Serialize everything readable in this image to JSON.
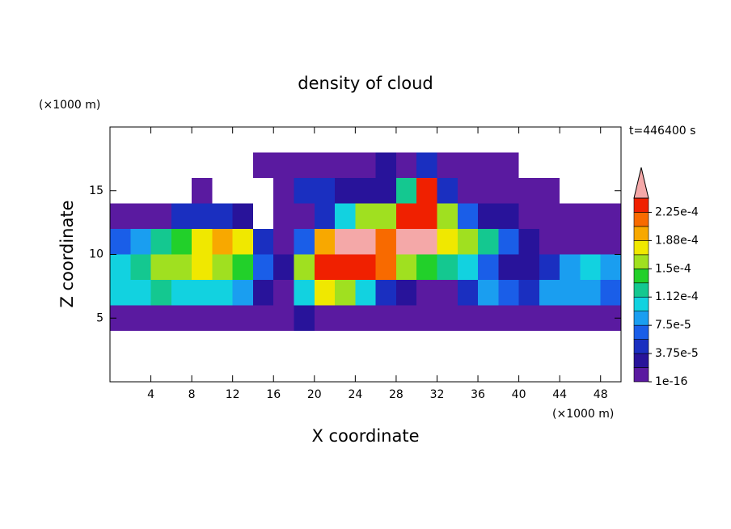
{
  "chart_data": {
    "type": "contour",
    "title": "density of cloud",
    "x_unit": "(×1000 m)",
    "y_unit": "(×1000 m)",
    "time_label": "t=446400 s",
    "xlabel": "X coordinate",
    "ylabel": "Z coordinate",
    "xlim": [
      0,
      50
    ],
    "ylim": [
      0,
      20
    ],
    "xticks": [
      4,
      8,
      12,
      16,
      20,
      24,
      28,
      32,
      36,
      40,
      44,
      48
    ],
    "yticks": [
      5,
      10,
      15
    ],
    "x": [
      1,
      3,
      5,
      7,
      9,
      11,
      13,
      15,
      17,
      19,
      21,
      23,
      25,
      27,
      29,
      31,
      33,
      35,
      37,
      39,
      41,
      43,
      45,
      47,
      49
    ],
    "y": [
      1,
      3,
      5,
      7,
      9,
      11,
      13,
      15,
      17,
      19
    ],
    "z": [
      [
        null,
        null,
        null,
        null,
        null,
        null,
        null,
        null,
        null,
        null,
        null,
        null,
        null,
        null,
        null,
        null,
        null,
        null,
        null,
        null,
        null,
        null,
        null,
        null,
        null
      ],
      [
        null,
        null,
        null,
        null,
        null,
        null,
        null,
        null,
        null,
        null,
        null,
        null,
        null,
        null,
        null,
        null,
        null,
        null,
        null,
        null,
        null,
        null,
        null,
        null,
        null
      ],
      [
        1e-06,
        1e-06,
        1e-06,
        1e-06,
        1e-06,
        1e-06,
        1e-06,
        1e-06,
        1e-06,
        3e-05,
        1e-05,
        5e-06,
        1e-06,
        1e-06,
        1e-06,
        1e-06,
        1e-06,
        1e-06,
        1e-06,
        1e-06,
        1e-06,
        1e-06,
        1e-06,
        1e-06,
        1e-06
      ],
      [
        0.0001,
        0.00011,
        0.00012,
        0.00011,
        0.00011,
        0.0001,
        9e-05,
        3e-05,
        1e-06,
        0.0001,
        0.00018,
        0.00015,
        0.0001,
        5e-05,
        3e-05,
        1e-05,
        5e-06,
        5e-05,
        8e-05,
        6e-05,
        5e-05,
        8e-05,
        9e-05,
        9e-05,
        6e-05
      ],
      [
        0.00011,
        0.00013,
        0.00015,
        0.00016,
        0.00017,
        0.00016,
        0.00014,
        6e-05,
        3e-05,
        0.00015,
        0.00023,
        0.00024,
        0.00024,
        0.00022,
        0.00016,
        0.00014,
        0.00013,
        0.00011,
        6e-05,
        3e-05,
        2e-05,
        5e-05,
        8e-05,
        0.0001,
        8e-05
      ],
      [
        6e-05,
        8e-05,
        0.00012,
        0.00014,
        0.00017,
        0.00019,
        0.00017,
        5e-05,
        1e-06,
        6e-05,
        0.0002,
        0.000245,
        0.000245,
        0.00022,
        0.000245,
        0.000245,
        0.00018,
        0.00015,
        0.00013,
        6e-05,
        2e-05,
        1e-06,
        1e-06,
        1e-06,
        1e-06
      ],
      [
        1e-06,
        5e-06,
        5e-06,
        5e-05,
        5e-05,
        5e-05,
        3e-05,
        null,
        1e-06,
        1e-06,
        4e-05,
        0.0001,
        0.00015,
        0.00015,
        0.00023,
        0.00024,
        0.00015,
        6e-05,
        3e-05,
        2e-05,
        5e-06,
        1e-06,
        1e-06,
        1e-06,
        1e-06
      ],
      [
        null,
        null,
        null,
        null,
        1e-06,
        null,
        null,
        null,
        1e-06,
        4e-05,
        4e-05,
        3e-05,
        2e-05,
        2e-05,
        0.00012,
        0.00024,
        4e-05,
        1e-06,
        1e-06,
        1e-06,
        1e-06,
        1e-06,
        null,
        null,
        null
      ],
      [
        null,
        null,
        null,
        null,
        null,
        null,
        null,
        1e-06,
        1e-06,
        1e-06,
        1e-06,
        1e-06,
        1e-06,
        3e-05,
        1e-06,
        5e-05,
        1e-06,
        1e-06,
        1e-06,
        1e-06,
        null,
        null,
        null,
        null,
        null
      ],
      [
        null,
        null,
        null,
        null,
        null,
        null,
        null,
        null,
        null,
        null,
        null,
        null,
        null,
        null,
        null,
        null,
        null,
        null,
        null,
        null,
        null,
        null,
        null,
        null,
        null
      ]
    ],
    "colorbar": {
      "levels": [
        1e-16,
        1.875e-05,
        3.75e-05,
        5.625e-05,
        7.5e-05,
        9.375e-05,
        0.0001125,
        0.00013125,
        0.00015,
        0.00016875,
        0.0001875,
        0.00020625,
        0.000225,
        0.00024375
      ],
      "colors": [
        "#5a1aa0",
        "#28139a",
        "#1a2fc0",
        "#1a5ee8",
        "#1a9ef0",
        "#12d2e0",
        "#14c890",
        "#22d02a",
        "#a0e020",
        "#f0e800",
        "#f8a800",
        "#f86a00",
        "#f02000"
      ],
      "overflow_color": "#f4a8a8",
      "ticks": [
        1e-16,
        {
          "value": 3.75e-05,
          "label": "3.75e-5"
        },
        {
          "value": 7.5e-05,
          "label": "7.5e-5"
        },
        {
          "value": 0.0001125,
          "label": "1.12e-4"
        },
        {
          "value": 0.00015,
          "label": "1.5e-4"
        },
        {
          "value": 0.0001875,
          "label": "1.88e-4"
        },
        {
          "value": 0.000225,
          "label": "2.25e-4"
        }
      ]
    }
  }
}
